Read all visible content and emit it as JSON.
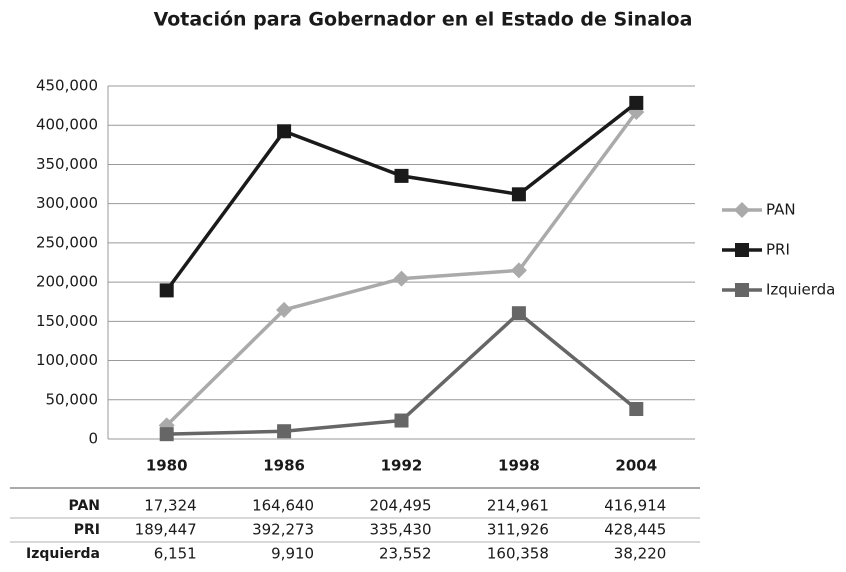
{
  "chart_data": {
    "type": "line",
    "title": "Votación para Gobernador en el Estado de Sinaloa",
    "categories": [
      "1980",
      "1986",
      "1992",
      "1998",
      "2004"
    ],
    "series": [
      {
        "name": "PAN",
        "color": "#aaaaaa",
        "marker": "diamond",
        "values": [
          17324,
          164640,
          204495,
          214961,
          416914
        ],
        "value_labels": [
          "17,324",
          "164,640",
          "204,495",
          "214,961",
          "416,914"
        ]
      },
      {
        "name": "PRI",
        "color": "#1a1a1a",
        "marker": "square",
        "values": [
          189447,
          392273,
          335430,
          311926,
          428445
        ],
        "value_labels": [
          "189,447",
          "392,273",
          "335,430",
          "311,926",
          "428,445"
        ]
      },
      {
        "name": "Izquierda",
        "color": "#666666",
        "marker": "square",
        "values": [
          6151,
          9910,
          23552,
          160358,
          38220
        ],
        "value_labels": [
          "6,151",
          "9,910",
          "23,552",
          "160,358",
          "38,220"
        ]
      }
    ],
    "ylim": [
      0,
      450000
    ],
    "yticks": [
      0,
      {
        "value": 50000,
        "label": "50,000"
      },
      {
        "value": 100000,
        "label": "100,000"
      },
      {
        "value": 150000,
        "label": "150,000"
      },
      {
        "value": 200000,
        "label": "200,000"
      },
      {
        "value": 250000,
        "label": "250,000"
      },
      {
        "value": 300000,
        "label": "300,000"
      },
      {
        "value": 350000,
        "label": "350,000"
      },
      {
        "value": 400000,
        "label": "400,000"
      },
      {
        "value": 450000,
        "label": "450,000"
      }
    ],
    "grid": true,
    "legend": "right"
  }
}
